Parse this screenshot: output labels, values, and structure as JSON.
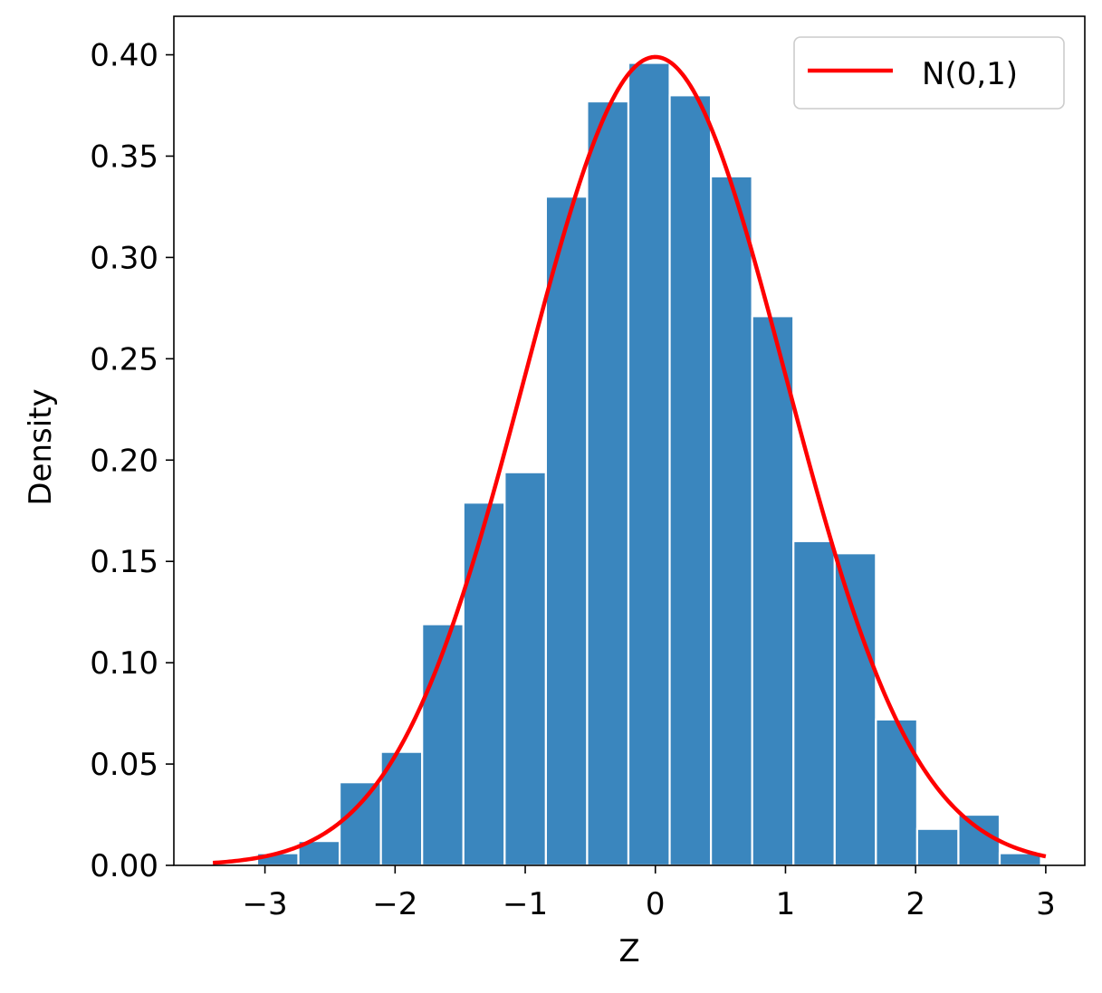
{
  "chart_data": {
    "type": "bar",
    "xlabel": "Z",
    "ylabel": "Density",
    "xlim": [
      -3.7,
      3.3
    ],
    "ylim": [
      0,
      0.419
    ],
    "x_ticks": [
      -3,
      -2,
      -1,
      0,
      1,
      2,
      3
    ],
    "x_tick_labels": [
      "−3",
      "−2",
      "−1",
      "0",
      "1",
      "2",
      "3"
    ],
    "y_ticks": [
      0.0,
      0.05,
      0.1,
      0.15,
      0.2,
      0.25,
      0.3,
      0.35,
      0.4
    ],
    "y_tick_labels": [
      "0.00",
      "0.05",
      "0.10",
      "0.15",
      "0.20",
      "0.25",
      "0.30",
      "0.35",
      "0.40"
    ],
    "grid": false,
    "legend_position": "top-right",
    "histogram": {
      "bin_start": -3.06,
      "bin_width": 0.317,
      "densities": [
        0.006,
        0.012,
        0.041,
        0.056,
        0.119,
        0.179,
        0.194,
        0.33,
        0.377,
        0.396,
        0.38,
        0.34,
        0.271,
        0.16,
        0.154,
        0.072,
        0.018,
        0.025,
        0.006
      ],
      "color": "#3a86be",
      "edge_color": "#ffffff"
    },
    "series": [
      {
        "name": "N(0,1)",
        "type": "line",
        "function": "standard_normal_pdf",
        "x_range": [
          -3.4,
          3.0
        ],
        "color": "#ff0000"
      }
    ]
  }
}
